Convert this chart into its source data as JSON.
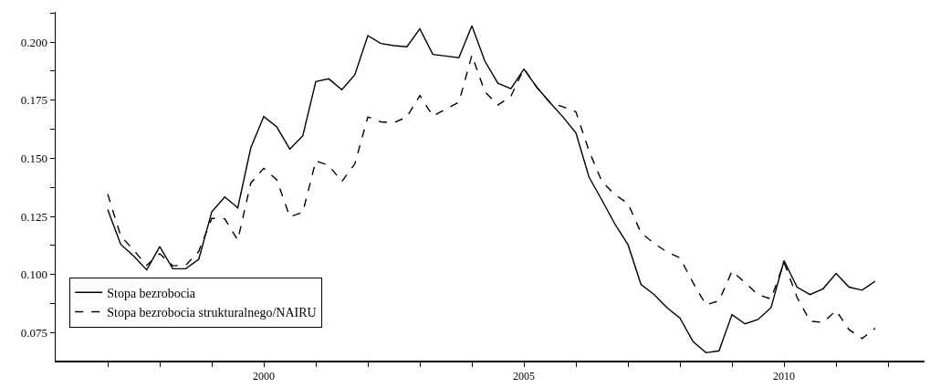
{
  "chart_data": {
    "type": "line",
    "x": [
      1997,
      1997.25,
      1997.5,
      1997.75,
      1998,
      1998.25,
      1998.5,
      1998.75,
      1999,
      1999.25,
      1999.5,
      1999.75,
      2000,
      2000.25,
      2000.5,
      2000.75,
      2001,
      2001.25,
      2001.5,
      2001.75,
      2002,
      2002.25,
      2002.5,
      2002.75,
      2003,
      2003.25,
      2003.5,
      2003.75,
      2004,
      2004.25,
      2004.5,
      2004.75,
      2005,
      2005.25,
      2005.5,
      2005.75,
      2006,
      2006.25,
      2006.5,
      2006.75,
      2007,
      2007.25,
      2007.5,
      2007.75,
      2008,
      2008.25,
      2008.5,
      2008.75,
      2009,
      2009.25,
      2009.5,
      2009.75,
      2010,
      2010.25,
      2010.5,
      2010.75,
      2011,
      2011.25,
      2011.5,
      2011.75
    ],
    "series": [
      {
        "name": "Stopa bezrobocia",
        "color": "#000000",
        "line_style": "solid",
        "values": [
          0.128,
          0.113,
          0.108,
          0.102,
          0.112,
          0.1025,
          0.1025,
          0.1066,
          0.127,
          0.1334,
          0.1287,
          0.1545,
          0.168,
          0.1635,
          0.154,
          0.1597,
          0.183,
          0.1842,
          0.1795,
          0.1859,
          0.2028,
          0.1994,
          0.1985,
          0.198,
          0.2057,
          0.1947,
          0.194,
          0.1933,
          0.207,
          0.1918,
          0.1823,
          0.18,
          0.1884,
          0.1805,
          0.174,
          0.1678,
          0.1609,
          0.142,
          0.132,
          0.1217,
          0.1129,
          0.0958,
          0.0915,
          0.0858,
          0.0813,
          0.0712,
          0.0664,
          0.0672,
          0.0828,
          0.0788,
          0.0807,
          0.0858,
          0.106,
          0.0946,
          0.0914,
          0.0939,
          0.1005,
          0.0946,
          0.0933,
          0.0971
        ]
      },
      {
        "name": "Stopa bezrobocia strukturalnego/NAIRU",
        "color": "#000000",
        "line_style": "dashed",
        "values": [
          0.1346,
          0.1167,
          0.1104,
          0.104,
          0.109,
          0.1038,
          0.104,
          0.11,
          0.1242,
          0.124,
          0.1148,
          0.1394,
          0.1457,
          0.1408,
          0.1249,
          0.1268,
          0.1489,
          0.147,
          0.14,
          0.1476,
          0.1678,
          0.1657,
          0.1653,
          0.1678,
          0.177,
          0.1682,
          0.1712,
          0.1741,
          0.1943,
          0.1786,
          0.1729,
          0.1767,
          0.1886,
          0.1805,
          0.174,
          0.1722,
          0.17,
          0.1533,
          0.14,
          0.1344,
          0.1306,
          0.118,
          0.1135,
          0.1097,
          0.1072,
          0.0965,
          0.087,
          0.0887,
          0.1015,
          0.0965,
          0.0914,
          0.0895,
          0.1053,
          0.0902,
          0.08,
          0.0794,
          0.0845,
          0.0763,
          0.0725,
          0.0769
        ]
      }
    ],
    "xlim": [
      1996,
      2012.7
    ],
    "xticks": [
      {
        "value": 1997,
        "label": null
      },
      {
        "value": 1998,
        "label": null
      },
      {
        "value": 1999,
        "label": null
      },
      2000,
      {
        "value": 2001,
        "label": null
      },
      {
        "value": 2002,
        "label": null
      },
      {
        "value": 2003,
        "label": null
      },
      {
        "value": 2004,
        "label": null
      },
      2005,
      {
        "value": 2006,
        "label": null
      },
      {
        "value": 2007,
        "label": null
      },
      {
        "value": 2008,
        "label": null
      },
      {
        "value": 2009,
        "label": null
      },
      2010,
      {
        "value": 2011,
        "label": null
      },
      {
        "value": 2012,
        "label": null
      }
    ],
    "ylim": [
      0.063,
      0.213
    ],
    "yticks": [
      {
        "value": 0.075,
        "label": "0.075"
      },
      {
        "value": 0.0875,
        "label": null
      },
      {
        "value": 0.1,
        "label": "0.100"
      },
      {
        "value": 0.1125,
        "label": null
      },
      {
        "value": 0.125,
        "label": "0.125"
      },
      {
        "value": 0.1375,
        "label": null
      },
      {
        "value": 0.15,
        "label": "0.150"
      },
      {
        "value": 0.1625,
        "label": null
      },
      {
        "value": 0.175,
        "label": "0.175"
      },
      {
        "value": 0.1875,
        "label": null
      },
      {
        "value": 0.2,
        "label": "0.200"
      },
      {
        "value": 0.2125,
        "label": null
      }
    ],
    "grid": false,
    "legend": "bottom left"
  }
}
